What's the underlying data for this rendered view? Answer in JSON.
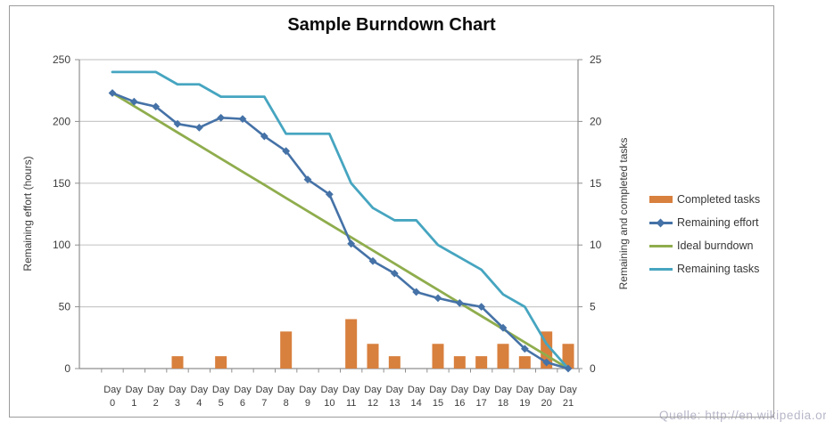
{
  "title": "Sample Burndown Chart",
  "watermark": "Quelle: http://en.wikipedia.org",
  "chart_data": {
    "type": "combo",
    "title": "Sample Burndown Chart",
    "grid": true,
    "legend_position": "right",
    "categories": [
      "Day 0",
      "Day 1",
      "Day 2",
      "Day 3",
      "Day 4",
      "Day 5",
      "Day 6",
      "Day 7",
      "Day 8",
      "Day 9",
      "Day 10",
      "Day 11",
      "Day 12",
      "Day 13",
      "Day 14",
      "Day 15",
      "Day 16",
      "Day 17",
      "Day 18",
      "Day 19",
      "Day 20",
      "Day 21"
    ],
    "left_axis": {
      "title": "Remaining effort (hours)",
      "ticks": [
        0,
        50,
        100,
        150,
        200,
        250
      ],
      "range": [
        0,
        250
      ]
    },
    "right_axis": {
      "title": "Remaining and completed tasks",
      "ticks": [
        0,
        5,
        10,
        15,
        20,
        25
      ],
      "range": [
        0,
        25
      ]
    },
    "series": [
      {
        "name": "Completed tasks",
        "type": "bar",
        "axis": "right",
        "color": "#D8803E",
        "values": [
          0,
          0,
          0,
          1,
          0,
          1,
          0,
          0,
          3,
          0,
          0,
          4,
          2,
          1,
          0,
          2,
          1,
          1,
          2,
          1,
          3,
          2
        ]
      },
      {
        "name": "Remaining effort",
        "type": "line",
        "axis": "left",
        "color": "#4572A7",
        "marker": "diamond",
        "values": [
          223,
          216,
          212,
          198,
          195,
          203,
          202,
          188,
          176,
          153,
          141,
          101,
          87,
          77,
          62,
          57,
          53,
          50,
          33,
          16,
          5,
          0
        ]
      },
      {
        "name": "Ideal burndown",
        "type": "line",
        "axis": "left",
        "color": "#8FAD4D",
        "values": [
          223,
          212.4,
          201.8,
          191.1,
          180.5,
          169.9,
          159.3,
          148.7,
          138,
          127.4,
          116.8,
          106.2,
          95.6,
          85,
          74.3,
          63.7,
          53.1,
          42.5,
          31.9,
          21.2,
          10.6,
          0
        ]
      },
      {
        "name": "Remaining tasks",
        "type": "line",
        "axis": "right",
        "color": "#46A5C0",
        "values": [
          24,
          24,
          24,
          23,
          23,
          22,
          22,
          22,
          19,
          19,
          19,
          15,
          13,
          12,
          12,
          10,
          9,
          8,
          6,
          5,
          2,
          0
        ]
      }
    ]
  }
}
